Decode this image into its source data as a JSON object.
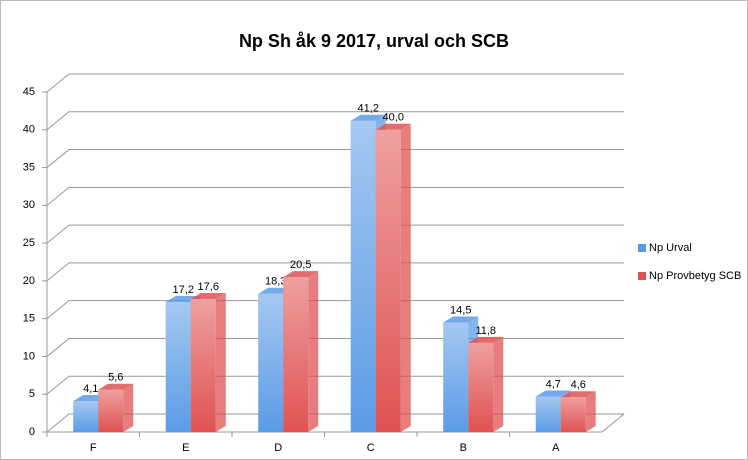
{
  "chart_data": {
    "type": "bar",
    "title": "Np Sh åk 9 2017, urval och SCB",
    "categories": [
      "F",
      "E",
      "D",
      "C",
      "B",
      "A"
    ],
    "series": [
      {
        "name": "Np Urval",
        "color": "#5b9be6",
        "values": [
          4.1,
          17.2,
          18.3,
          41.2,
          14.5,
          4.7
        ],
        "value_labels": [
          "4,1",
          "17,2",
          "18,3",
          "41,2",
          "14,5",
          "4,7"
        ]
      },
      {
        "name": "Np Provbetyg SCB",
        "color": "#e05252",
        "values": [
          5.6,
          17.6,
          20.5,
          40.0,
          11.8,
          4.6
        ],
        "value_labels": [
          "5,6",
          "17,6",
          "20,5",
          "40,0",
          "11,8",
          "4,6"
        ]
      }
    ],
    "ylim": [
      0,
      45
    ],
    "yticks": [
      0,
      5,
      10,
      15,
      20,
      25,
      30,
      35,
      40,
      45
    ],
    "grid": true,
    "legend": "right"
  }
}
